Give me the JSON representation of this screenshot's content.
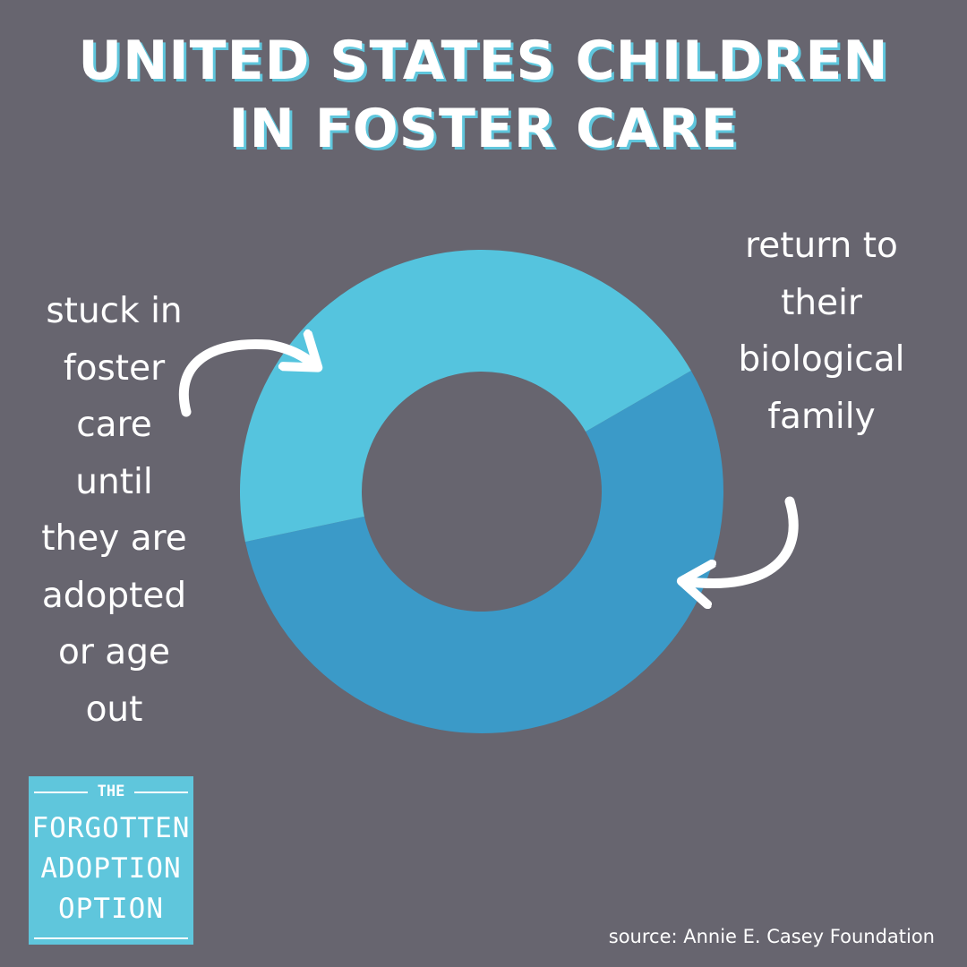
{
  "title": {
    "line1": "UNITED STATES CHILDREN",
    "line2": "IN FOSTER CARE"
  },
  "chart_data": {
    "type": "pie",
    "variant": "donut",
    "title": "UNITED STATES CHILDREN IN FOSTER CARE",
    "slices": [
      {
        "label": "return to their biological family",
        "value": 55,
        "color": "#3b9ac8"
      },
      {
        "label": "stuck in foster care until they are adopted or age out",
        "value": 45,
        "color": "#55c4de"
      }
    ]
  },
  "labels": {
    "left": [
      "stuck in",
      "foster",
      "care",
      "until",
      "they are",
      "adopted",
      "or age",
      "out"
    ],
    "right": [
      "return to",
      "their",
      "biological",
      "family"
    ]
  },
  "logo": {
    "the": "THE",
    "line1": "FORGOTTEN",
    "line2": "ADOPTION",
    "line3": "OPTION"
  },
  "source": "source: Annie E. Casey Foundation",
  "colors": {
    "background": "#67656f",
    "accent": "#5fc6dc",
    "text": "#ffffff"
  }
}
